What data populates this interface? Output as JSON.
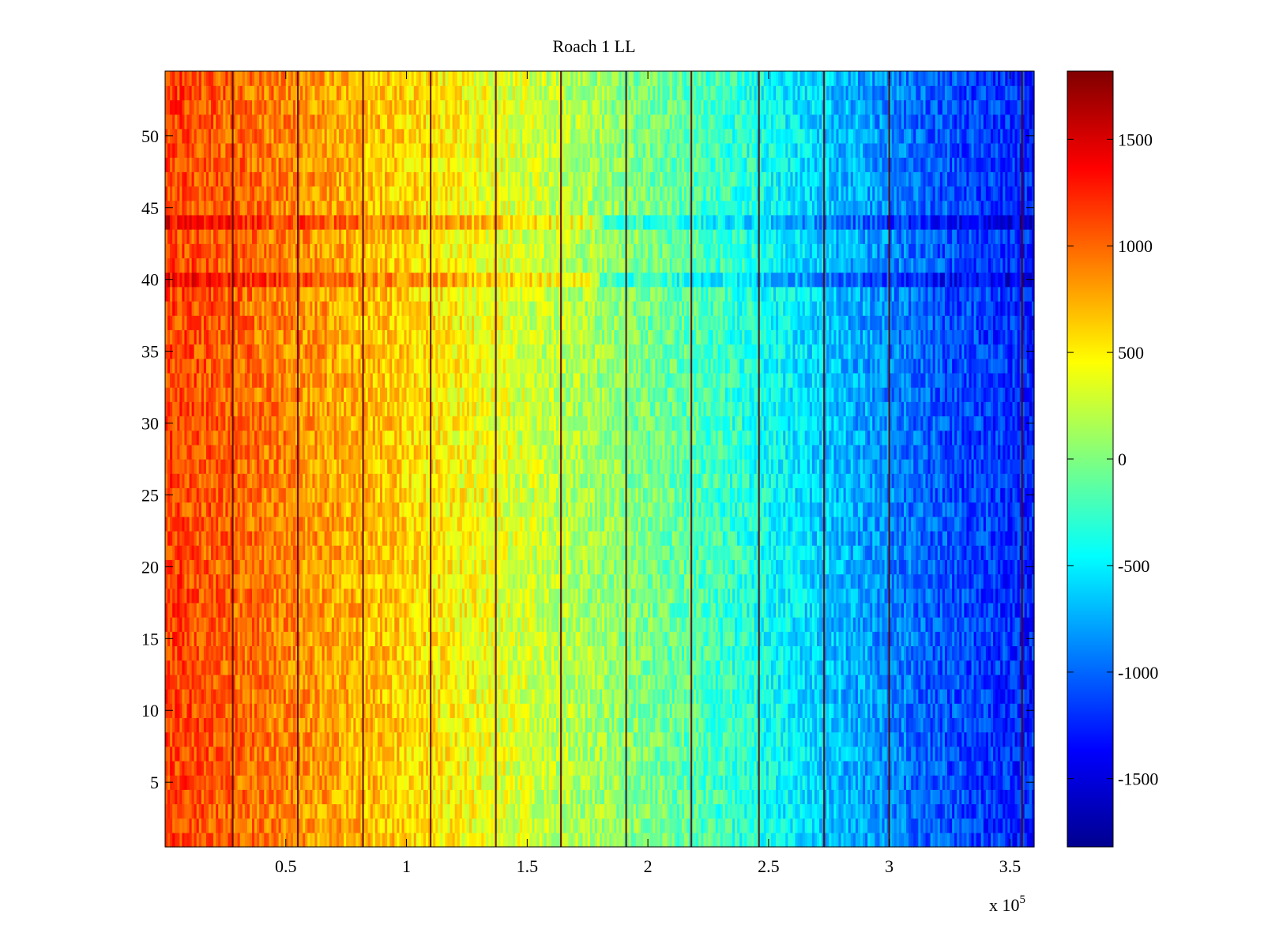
{
  "chart_data": {
    "type": "heatmap",
    "title": "Roach 1 LL",
    "xlabel": "",
    "ylabel": "",
    "x_range": [
      0,
      360000
    ],
    "y_range": [
      0.5,
      54.5
    ],
    "x_ticks": [
      50000,
      100000,
      150000,
      200000,
      250000,
      300000,
      350000
    ],
    "x_tick_labels": [
      "0.5",
      "1",
      "1.5",
      "2",
      "2.5",
      "3",
      "3.5"
    ],
    "x_exponent_label": "x 10",
    "x_exponent_power": "5",
    "y_ticks": [
      5,
      10,
      15,
      20,
      25,
      30,
      35,
      40,
      45,
      50
    ],
    "y_tick_labels": [
      "5",
      "10",
      "15",
      "20",
      "25",
      "30",
      "35",
      "40",
      "45",
      "50"
    ],
    "colorbar": {
      "colormap": "jet",
      "range": [
        -1820,
        1820
      ],
      "ticks": [
        -1500,
        -1000,
        -500,
        0,
        500,
        1000,
        1500
      ],
      "tick_labels": [
        "-1500",
        "-1000",
        "-500",
        "0",
        "500",
        "1000",
        "1500"
      ]
    },
    "rows": 54,
    "value_trend": {
      "description_x": [
        0,
        40000,
        80000,
        120000,
        160000,
        200000,
        240000,
        280000,
        320000,
        360000
      ],
      "row_mean_values": [
        1150,
        950,
        720,
        480,
        230,
        -20,
        -320,
        -700,
        -1050,
        -1250
      ]
    },
    "vertical_line_x": [
      28000,
      55000,
      82000,
      110000,
      137000,
      164000,
      191000,
      218000,
      246000,
      273000,
      300000,
      355000
    ],
    "dark_rows": [
      40,
      44
    ],
    "grid": false,
    "legend": "none"
  }
}
